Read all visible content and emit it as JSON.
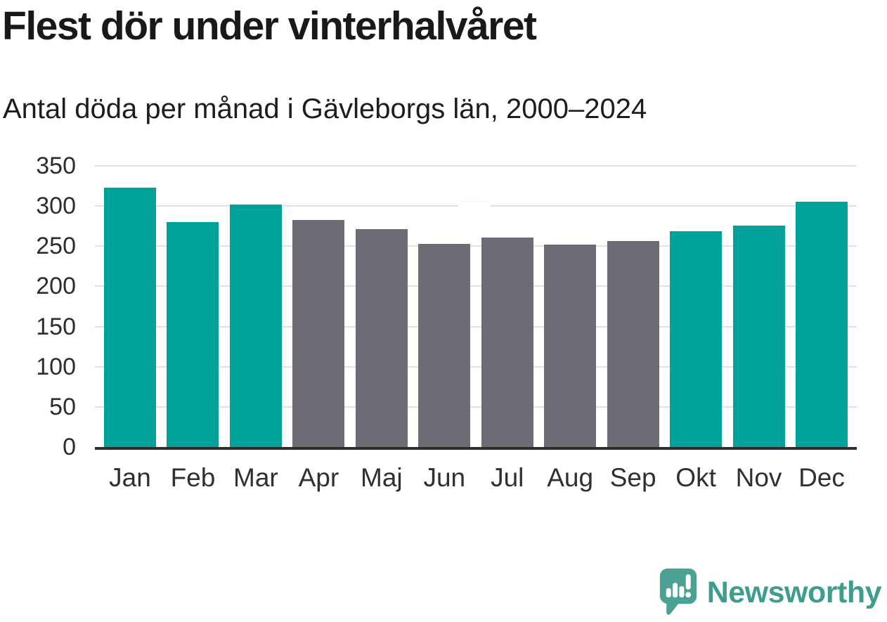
{
  "title": "Flest dör under vinterhalvåret",
  "subtitle": "Antal döda per månad i Gävleborgs län, 2000–2024",
  "chart_data": {
    "type": "bar",
    "title": "Flest dör under vinterhalvåret",
    "subtitle": "Antal döda per månad i Gävleborgs län, 2000–2024",
    "categories": [
      "Jan",
      "Feb",
      "Mar",
      "Apr",
      "Maj",
      "Jun",
      "Jul",
      "Aug",
      "Sep",
      "Okt",
      "Nov",
      "Dec"
    ],
    "values": [
      323,
      280,
      302,
      283,
      271,
      253,
      261,
      252,
      256,
      269,
      276,
      305
    ],
    "bar_groups": [
      "winter",
      "winter",
      "winter",
      "summer",
      "summer",
      "summer",
      "summer",
      "summer",
      "summer",
      "winter",
      "winter",
      "winter"
    ],
    "colors": {
      "winter": "#00a29a",
      "summer": "#6e6b74"
    },
    "xlabel": "",
    "ylabel": "",
    "ylim": [
      0,
      350
    ],
    "yticks": [
      0,
      50,
      100,
      150,
      200,
      250,
      300,
      350
    ],
    "grid": true,
    "legend": "none"
  },
  "branding": {
    "logo_text": "Newsworthy",
    "logo_color": "#3f9d8e",
    "icon": "newsworthy-bubble-bar-chart-icon",
    "icon_color": "#4ba294"
  }
}
